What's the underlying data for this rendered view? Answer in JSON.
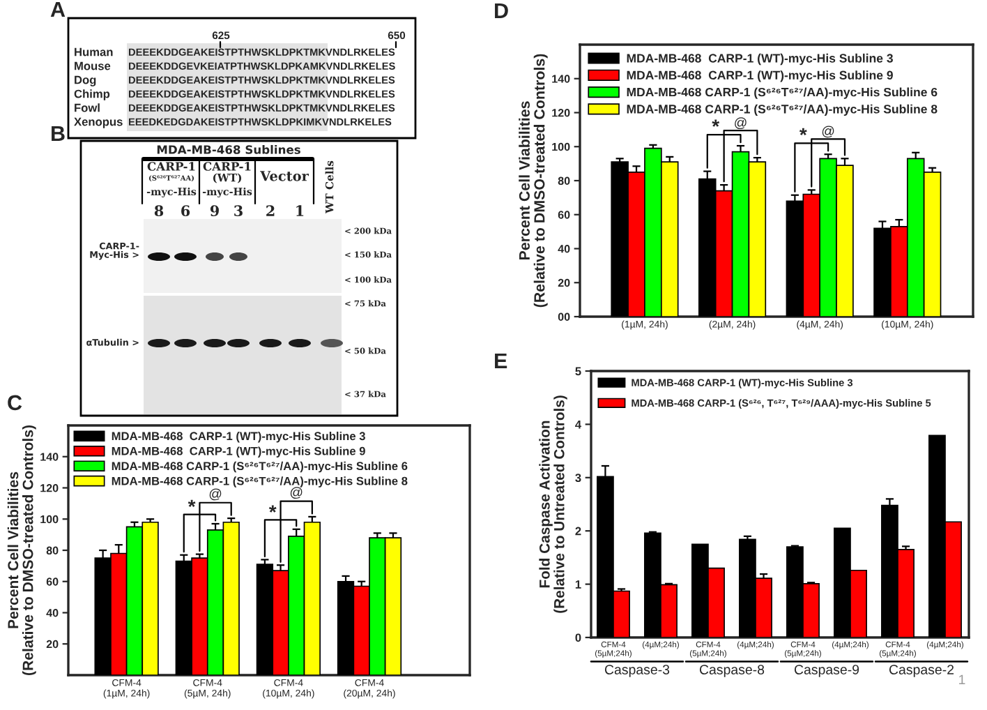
{
  "chart_data": [
    {
      "type": "other",
      "title": "A",
      "annotations": [
        "625",
        "650",
        "Human",
        "DEEEKDDGEAKEISTPTHWSKLDPKTMKVNDLRKELES",
        "Mouse",
        "DEEEKDDGEVKEIATPTHWSKLDPKAMKVNDLRKELES",
        "Dog",
        "DEEEKDDGEAKEISTPTHWSKLDPKTMKVNDLRKELES",
        "Chimp",
        "DEEEKDDGEAKEISTPTHWSKLDPKTMKVNDLRKELES",
        "Fowl",
        "DEEEKDDGEAKEISTPTHWSKLDPKTMKVNDLRKELES",
        "Xenopus",
        "EEEDKEDGDAKEISTPTHWSKLDPKIMKVNDLRKELES"
      ]
    },
    {
      "type": "other",
      "title": "B",
      "annotations": [
        "MDA-MB-468 Sublines",
        "CARP-1",
        "(S⁶²⁶T⁶²⁷AA)",
        "-myc-His",
        "CARP-1",
        "(WT)",
        "-myc-His",
        "Vector",
        "WT Cells",
        "8",
        "6",
        "9",
        "3",
        "2",
        "1",
        "CARP-1-\nMyc-His >",
        "αTubulin >",
        "< 200 kDa",
        "< 150 kDa",
        "< 100 kDa",
        "< 75 kDa",
        "< 50 kDa",
        "< 37 kDa"
      ]
    },
    {
      "type": "bar",
      "title": "C",
      "ylabel": "Percent Cell Viabilities\n(Relative to DMSO-treated Controls)",
      "categories": [
        "CFM-4\n(1µM, 24h)",
        "CFM-4\n(5µM, 24h)",
        "CFM-4\n(10µM, 24h)",
        "CFM-4\n(20µM, 24h)"
      ],
      "series": [
        {
          "name": "MDA-MB-468  CARP-1 (WT)-myc-His Subline 3",
          "color": "#000000",
          "values": [
            75,
            73,
            71,
            60
          ],
          "errors": [
            5,
            4,
            3,
            3.5
          ]
        },
        {
          "name": "MDA-MB-468  CARP-1 (WT)-myc-His Subline 9",
          "color": "#ff0000",
          "values": [
            78,
            75,
            67,
            57
          ],
          "errors": [
            5.5,
            2.5,
            3.5,
            3
          ]
        },
        {
          "name": "MDA-MB-468 CARP-1 (S⁶²⁶T⁶²⁷/AA)-myc-His Subline 6",
          "color": "#00ff00",
          "values": [
            95,
            93,
            89,
            88
          ],
          "errors": [
            3,
            4,
            4.5,
            3
          ]
        },
        {
          "name": "MDA-MB-468 CARP-1 (S⁶²⁶T⁶²⁷/AA)-myc-His Subline 8",
          "color": "#ffff00",
          "values": [
            98,
            98,
            98,
            88
          ],
          "errors": [
            2,
            2.5,
            3.5,
            3
          ]
        }
      ],
      "ylim": [
        0,
        160
      ],
      "yticks": [
        20,
        40,
        60,
        80,
        100,
        120,
        140
      ],
      "legend": "top left",
      "annotations": [
        "*",
        "@",
        "*",
        "@"
      ]
    },
    {
      "type": "bar",
      "title": "D",
      "ylabel": "Percent Cell Viabilities\n(Relative to DMSO-treated Controls)",
      "categories": [
        "(1µM, 24h)",
        "(2µM, 24h)",
        "(4µM, 24h)",
        "(10µM, 24h)"
      ],
      "series": [
        {
          "name": "MDA-MB-468  CARP-1 (WT)-myc-His Subline 3",
          "color": "#000000",
          "values": [
            91,
            81,
            68,
            52
          ],
          "errors": [
            2,
            4.5,
            3.5,
            4
          ]
        },
        {
          "name": "MDA-MB-468  CARP-1 (WT)-myc-His Subline 9",
          "color": "#ff0000",
          "values": [
            85,
            74,
            72,
            53
          ],
          "errors": [
            3.5,
            3.5,
            2.5,
            4
          ]
        },
        {
          "name": "MDA-MB-468 CARP-1 (S⁶²⁶T⁶²⁷/AA)-myc-His Subline 6",
          "color": "#00ff00",
          "values": [
            99,
            97,
            93,
            93
          ],
          "errors": [
            2,
            3.5,
            2.5,
            3.5
          ]
        },
        {
          "name": "MDA-MB-468 CARP-1 (S⁶²⁶T⁶²⁷/AA)-myc-His Subline 8",
          "color": "#ffff00",
          "values": [
            91,
            91,
            89,
            85
          ],
          "errors": [
            3,
            2.5,
            4,
            2.5
          ]
        }
      ],
      "ylim": [
        0,
        160
      ],
      "yticks": [
        {
          "value": 0,
          "label": "00"
        },
        20,
        40,
        60,
        80,
        100,
        120,
        140
      ],
      "legend": "top left",
      "annotations": [
        "*",
        "@",
        "*",
        "@"
      ]
    },
    {
      "type": "bar",
      "title": "E",
      "ylabel": "Fold Caspase Activation\n(Relative to Untreated Controls)",
      "categories": [
        "CFM-4\n(5µM;24h)",
        "(4µM;24h)",
        "CFM-4\n(5µM;24h)",
        "(4µM;24h)",
        "CFM-4\n(5µM;24h)",
        "(4µM;24h)",
        "CFM-4\n(5µM;24h)",
        "(4µM;24h)"
      ],
      "series": [
        {
          "name": "MDA-MB-468 CARP-1 (WT)-myc-His Subline 3",
          "color": "#000000",
          "values": [
            3.02,
            1.96,
            1.75,
            1.84,
            1.7,
            2.05,
            2.48,
            3.79
          ],
          "errors": [
            0.2,
            0.02,
            null,
            0.06,
            0.02,
            null,
            0.12,
            null
          ]
        },
        {
          "name": "MDA-MB-468 CARP-1 (S⁶²⁶, T⁶²⁷, T⁶²⁹/AAA)-myc-His Subline 5",
          "color": "#ff0000",
          "values": [
            0.87,
            0.99,
            1.3,
            1.11,
            1.01,
            1.26,
            1.65,
            2.17
          ],
          "errors": [
            0.04,
            0.02,
            null,
            0.08,
            0.02,
            null,
            0.06,
            null
          ]
        }
      ],
      "ylim": [
        0,
        5
      ],
      "yticks": [
        0,
        1,
        2,
        3,
        4,
        5
      ],
      "legend": "top left",
      "annotations": [
        "Caspase-3",
        "Caspase-8",
        "Caspase-9",
        "Caspase-2",
        "1"
      ]
    }
  ]
}
